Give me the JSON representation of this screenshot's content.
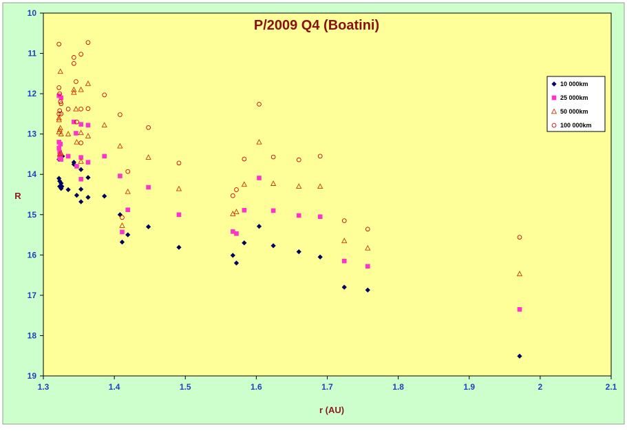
{
  "chart_data": {
    "type": "scatter",
    "title": "P/2009 Q4 (Boatini)",
    "xlabel": "r (AU)",
    "ylabel": "R",
    "xlim": [
      1.3,
      2.1
    ],
    "ylim": [
      10,
      19
    ],
    "y_inverted": true,
    "xticks": [
      "1.3",
      "1.4",
      "1.5",
      "1.6",
      "1.7",
      "1.8",
      "1.9",
      "2",
      "2.1"
    ],
    "yticks": [
      "10",
      "11",
      "12",
      "13",
      "14",
      "15",
      "16",
      "17",
      "18",
      "19"
    ],
    "grid": false,
    "legend_position": "right",
    "colors": {
      "outer_background": "#ccffcc",
      "plot_background": "#ffff99",
      "axis": "#000000"
    },
    "series": [
      {
        "name": "10 000km",
        "marker": "diamond",
        "color": "#000060",
        "points": [
          [
            1.322,
            13.63
          ],
          [
            1.322,
            14.1
          ],
          [
            1.323,
            14.17
          ],
          [
            1.323,
            14.3
          ],
          [
            1.325,
            14.22
          ],
          [
            1.325,
            14.35
          ],
          [
            1.326,
            14.3
          ],
          [
            1.327,
            13.55
          ],
          [
            1.335,
            14.38
          ],
          [
            1.343,
            13.7
          ],
          [
            1.343,
            13.75
          ],
          [
            1.347,
            14.52
          ],
          [
            1.353,
            13.88
          ],
          [
            1.353,
            14.37
          ],
          [
            1.353,
            14.68
          ],
          [
            1.363,
            14.08
          ],
          [
            1.363,
            14.57
          ],
          [
            1.386,
            14.54
          ],
          [
            1.408,
            15.0
          ],
          [
            1.411,
            15.68
          ],
          [
            1.419,
            15.5
          ],
          [
            1.448,
            15.3
          ],
          [
            1.491,
            15.81
          ],
          [
            1.567,
            16.01
          ],
          [
            1.572,
            16.2
          ],
          [
            1.583,
            15.7
          ],
          [
            1.604,
            15.29
          ],
          [
            1.624,
            15.77
          ],
          [
            1.66,
            15.92
          ],
          [
            1.69,
            16.05
          ],
          [
            1.724,
            16.8
          ],
          [
            1.757,
            16.87
          ],
          [
            1.971,
            18.51
          ]
        ]
      },
      {
        "name": "25 000km",
        "marker": "square",
        "color": "#ff33cc",
        "points": [
          [
            1.322,
            12.05
          ],
          [
            1.322,
            13.2
          ],
          [
            1.322,
            13.35
          ],
          [
            1.323,
            13.6
          ],
          [
            1.323,
            13.45
          ],
          [
            1.324,
            13.25
          ],
          [
            1.324,
            13.53
          ],
          [
            1.325,
            12.1
          ],
          [
            1.325,
            13.63
          ],
          [
            1.335,
            13.55
          ],
          [
            1.343,
            12.7
          ],
          [
            1.346,
            12.98
          ],
          [
            1.347,
            13.8
          ],
          [
            1.353,
            12.76
          ],
          [
            1.353,
            13.58
          ],
          [
            1.353,
            14.12
          ],
          [
            1.363,
            12.78
          ],
          [
            1.363,
            13.7
          ],
          [
            1.386,
            13.55
          ],
          [
            1.408,
            14.04
          ],
          [
            1.411,
            15.43
          ],
          [
            1.419,
            14.88
          ],
          [
            1.448,
            14.32
          ],
          [
            1.491,
            15.0
          ],
          [
            1.567,
            15.42
          ],
          [
            1.572,
            15.47
          ],
          [
            1.583,
            14.89
          ],
          [
            1.604,
            14.09
          ],
          [
            1.624,
            14.9
          ],
          [
            1.66,
            15.02
          ],
          [
            1.69,
            15.05
          ],
          [
            1.724,
            16.15
          ],
          [
            1.757,
            16.28
          ],
          [
            1.971,
            17.35
          ]
        ]
      },
      {
        "name": "50 000km",
        "marker": "triangle",
        "color": "#cc3300",
        "points": [
          [
            1.322,
            12.6
          ],
          [
            1.322,
            12.65
          ],
          [
            1.322,
            12.95
          ],
          [
            1.323,
            12.9
          ],
          [
            1.323,
            13.5
          ],
          [
            1.324,
            11.45
          ],
          [
            1.324,
            12.85
          ],
          [
            1.325,
            13.0
          ],
          [
            1.325,
            13.48
          ],
          [
            1.335,
            13.0
          ],
          [
            1.343,
            11.9
          ],
          [
            1.343,
            11.97
          ],
          [
            1.346,
            12.38
          ],
          [
            1.347,
            13.2
          ],
          [
            1.353,
            11.9
          ],
          [
            1.353,
            12.97
          ],
          [
            1.353,
            13.68
          ],
          [
            1.363,
            11.75
          ],
          [
            1.363,
            13.05
          ],
          [
            1.386,
            12.78
          ],
          [
            1.408,
            13.3
          ],
          [
            1.411,
            15.27
          ],
          [
            1.419,
            14.43
          ],
          [
            1.448,
            13.58
          ],
          [
            1.491,
            14.36
          ],
          [
            1.567,
            14.98
          ],
          [
            1.572,
            14.93
          ],
          [
            1.583,
            14.25
          ],
          [
            1.604,
            13.2
          ],
          [
            1.624,
            14.23
          ],
          [
            1.66,
            14.3
          ],
          [
            1.69,
            14.3
          ],
          [
            1.724,
            15.65
          ],
          [
            1.757,
            15.83
          ],
          [
            1.971,
            16.47
          ]
        ]
      },
      {
        "name": "100 000km",
        "marker": "circle",
        "color": "#cc0000",
        "points": [
          [
            1.322,
            10.77
          ],
          [
            1.322,
            11.85
          ],
          [
            1.322,
            12.5
          ],
          [
            1.323,
            12.0
          ],
          [
            1.323,
            12.42
          ],
          [
            1.324,
            12.2
          ],
          [
            1.325,
            12.25
          ],
          [
            1.325,
            12.5
          ],
          [
            1.335,
            12.38
          ],
          [
            1.343,
            11.1
          ],
          [
            1.343,
            11.25
          ],
          [
            1.346,
            11.7
          ],
          [
            1.347,
            12.7
          ],
          [
            1.353,
            11.02
          ],
          [
            1.353,
            12.38
          ],
          [
            1.353,
            13.22
          ],
          [
            1.363,
            10.73
          ],
          [
            1.363,
            12.37
          ],
          [
            1.386,
            12.03
          ],
          [
            1.408,
            12.52
          ],
          [
            1.411,
            15.07
          ],
          [
            1.419,
            13.93
          ],
          [
            1.448,
            12.84
          ],
          [
            1.491,
            13.72
          ],
          [
            1.567,
            14.53
          ],
          [
            1.572,
            14.38
          ],
          [
            1.583,
            13.62
          ],
          [
            1.604,
            12.26
          ],
          [
            1.624,
            13.57
          ],
          [
            1.66,
            13.64
          ],
          [
            1.69,
            13.55
          ],
          [
            1.724,
            15.15
          ],
          [
            1.757,
            15.36
          ],
          [
            1.971,
            15.56
          ]
        ]
      }
    ]
  }
}
